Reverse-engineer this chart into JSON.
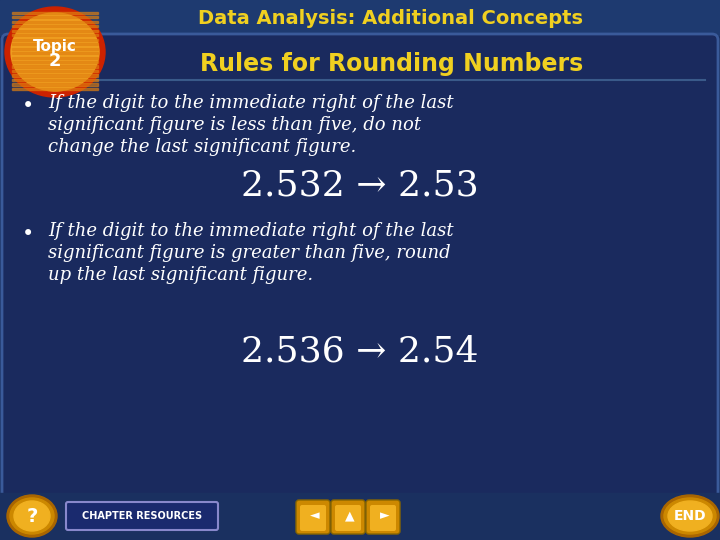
{
  "title": "Data Analysis: Additional Concepts",
  "subtitle": "Rules for Rounding Numbers",
  "bullet1_line1": "If the digit to the immediate right of the last",
  "bullet1_line2": "significant figure is less than five, do not",
  "bullet1_line3": "change the last significant figure.",
  "example1": "2.532 → 2.53",
  "bullet2_line1": "If the digit to the immediate right of the last",
  "bullet2_line2": "significant figure is greater than five, round",
  "bullet2_line3": "up the last significant figure.",
  "example2": "2.536 → 2.54",
  "bg_page": "#1a3060",
  "bg_title_bar": "#1a3060",
  "bg_content": "#1a2a5e",
  "title_color": "#f0d020",
  "subtitle_color": "#f0d020",
  "bullet_color": "#ffffff",
  "example_color": "#ffffff",
  "topic_outer": "#cc2200",
  "topic_inner": "#f0a020",
  "topic_stripe": "#e08010",
  "footer_btn_outer": "#cc8800",
  "footer_btn_inner": "#f0b020",
  "chapter_res_bg": "#1a2a6e",
  "chapter_res_border": "#8888cc",
  "chapter_resources_text": "CHAPTER RESOURCES",
  "end_text": "END"
}
